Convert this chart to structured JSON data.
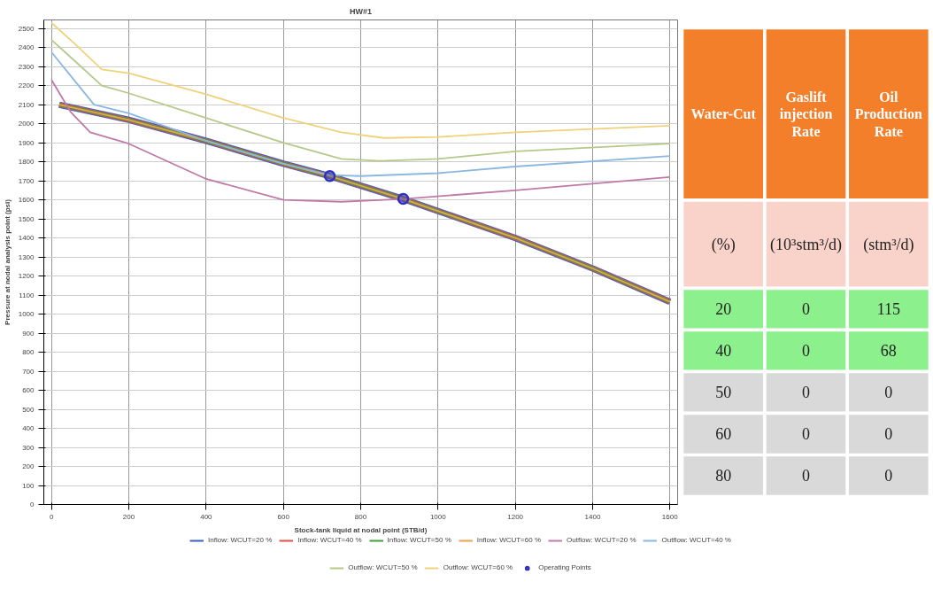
{
  "chart_data": [
    {
      "type": "line",
      "title": "HW#1",
      "xlabel": "Stock-tank liquid at nodal point (STB/d)",
      "ylabel": "Pressure at nodal analysis point (psi)",
      "xlim": [
        -20,
        1620
      ],
      "ylim": [
        0,
        2545
      ],
      "xticks": [
        0,
        200,
        400,
        600,
        800,
        1000,
        1200,
        1400,
        1600
      ],
      "yticks": [
        0,
        100,
        200,
        300,
        400,
        500,
        600,
        700,
        800,
        900,
        1000,
        1100,
        1200,
        1300,
        1400,
        1500,
        1600,
        1700,
        1800,
        1900,
        2000,
        2100,
        2200,
        2300,
        2400,
        2500
      ],
      "grid": true,
      "legend": "bottom",
      "series": [
        {
          "name": "Inflow: WCUT=20 %",
          "color": "#3c5fbf",
          "type": "line",
          "x": [
            20,
            200,
            400,
            600,
            720,
            910,
            1200,
            1400,
            1600
          ],
          "values": [
            2100,
            2020,
            1910,
            1790,
            1725,
            1605,
            1400,
            1240,
            1065
          ]
        },
        {
          "name": "Inflow: WCUT=40 %",
          "color": "#e0504a",
          "type": "line",
          "x": [
            20,
            200,
            400,
            600,
            720,
            910,
            1200,
            1400,
            1600
          ],
          "values": [
            2100,
            2020,
            1910,
            1790,
            1725,
            1605,
            1400,
            1240,
            1065
          ]
        },
        {
          "name": "Inflow: WCUT=50 %",
          "color": "#3f9f3f",
          "type": "line",
          "x": [
            20,
            200,
            400,
            600,
            720,
            910,
            1200,
            1400,
            1600
          ],
          "values": [
            2100,
            2020,
            1910,
            1790,
            1725,
            1605,
            1400,
            1240,
            1065
          ]
        },
        {
          "name": "Inflow: WCUT=60 %",
          "color": "#f0a050",
          "type": "line",
          "x": [
            20,
            200,
            400,
            600,
            720,
            910,
            1200,
            1400,
            1600
          ],
          "values": [
            2100,
            2020,
            1910,
            1790,
            1725,
            1605,
            1400,
            1240,
            1065
          ]
        },
        {
          "name": "Outflow: WCUT=20 %",
          "color": "#c07aa8",
          "type": "line",
          "x": [
            0,
            50,
            100,
            200,
            400,
            600,
            750,
            910,
            1200,
            1600
          ],
          "values": [
            2230,
            2060,
            1955,
            1895,
            1710,
            1600,
            1590,
            1605,
            1650,
            1720
          ]
        },
        {
          "name": "Outflow: WCUT=40 %",
          "color": "#8ab8e0",
          "type": "line",
          "x": [
            0,
            50,
            110,
            200,
            400,
            600,
            720,
            800,
            1000,
            1200,
            1600
          ],
          "values": [
            2375,
            2250,
            2100,
            2055,
            1910,
            1790,
            1730,
            1725,
            1740,
            1775,
            1830
          ]
        },
        {
          "name": "Outflow: WCUT=50 %",
          "color": "#b5c98a",
          "type": "line",
          "x": [
            0,
            60,
            130,
            200,
            400,
            600,
            750,
            850,
            1000,
            1200,
            1600
          ],
          "values": [
            2440,
            2330,
            2200,
            2160,
            2030,
            1900,
            1815,
            1805,
            1815,
            1855,
            1895
          ]
        },
        {
          "name": "Outflow: WCUT=60 %",
          "color": "#f0d27a",
          "type": "line",
          "x": [
            0,
            60,
            130,
            200,
            400,
            600,
            750,
            860,
            1000,
            1200,
            1600
          ],
          "values": [
            2530,
            2420,
            2285,
            2265,
            2155,
            2030,
            1955,
            1925,
            1930,
            1955,
            1990
          ]
        },
        {
          "name": "Operating Points",
          "color": "#3030c0",
          "type": "scatter",
          "marker": "circle",
          "x": [
            720,
            910
          ],
          "values": [
            1725,
            1605
          ]
        }
      ]
    },
    {
      "type": "other",
      "categories": [
        "Water-Cut",
        "Gaslift injection Rate",
        "Oil Production Rate"
      ],
      "cell_labels": [
        [
          "(%)",
          "(10³stm³/d)",
          "(stm³/d)"
        ],
        [
          "20",
          "0",
          "115"
        ],
        [
          "40",
          "0",
          "68"
        ],
        [
          "50",
          "0",
          "0"
        ],
        [
          "60",
          "0",
          "0"
        ],
        [
          "80",
          "0",
          "0"
        ]
      ],
      "colors": [
        [
          "#f47f2a",
          "#f47f2a",
          "#f47f2a"
        ],
        [
          "#f9d3c9",
          "#f9d3c9",
          "#f9d3c9"
        ],
        [
          "#8cf08c",
          "#8cf08c",
          "#8cf08c"
        ],
        [
          "#8cf08c",
          "#8cf08c",
          "#8cf08c"
        ],
        [
          "#d9d9d9",
          "#d9d9d9",
          "#d9d9d9"
        ],
        [
          "#d9d9d9",
          "#d9d9d9",
          "#d9d9d9"
        ],
        [
          "#d9d9d9",
          "#d9d9d9",
          "#d9d9d9"
        ]
      ]
    }
  ]
}
